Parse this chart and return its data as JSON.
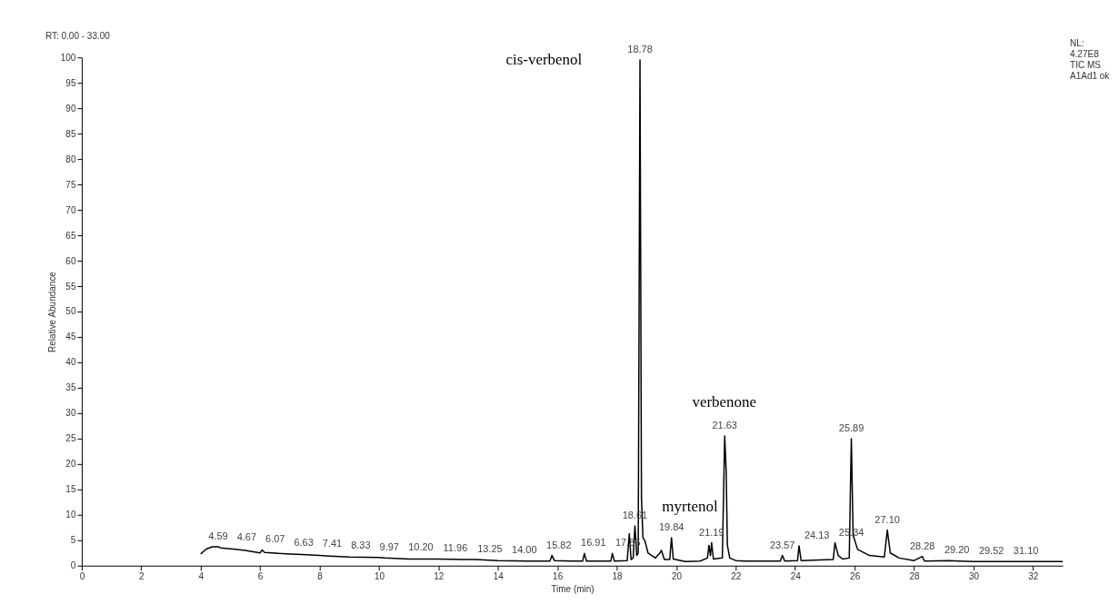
{
  "chart_data": {
    "type": "line",
    "xlabel": "Time (min)",
    "ylabel": "Relative Abundance",
    "xlim": [
      0,
      33
    ],
    "xticks": [
      0,
      2,
      4,
      6,
      8,
      10,
      12,
      14,
      16,
      18,
      20,
      22,
      24,
      26,
      28,
      30,
      32
    ],
    "ylim": [
      0,
      100
    ],
    "yticks": [
      0,
      5,
      10,
      15,
      20,
      25,
      30,
      35,
      40,
      45,
      50,
      55,
      60,
      65,
      70,
      75,
      80,
      85,
      90,
      95,
      100
    ],
    "grid": false,
    "marker": "none",
    "line_style": "solid",
    "series": [
      {
        "color": "#000000",
        "x": [
          4.0,
          4.2,
          4.4,
          4.59,
          4.67,
          5.0,
          5.5,
          6.0,
          6.07,
          6.15,
          6.63,
          7.0,
          7.41,
          8.0,
          8.33,
          9.0,
          9.97,
          10.2,
          11.0,
          11.96,
          13.0,
          13.25,
          14.0,
          15.0,
          15.75,
          15.82,
          15.9,
          16.5,
          16.85,
          16.91,
          16.98,
          17.8,
          17.85,
          17.92,
          18.35,
          18.42,
          18.48,
          18.55,
          18.61,
          18.67,
          18.72,
          18.78,
          18.83,
          18.88,
          18.95,
          19.05,
          19.3,
          19.45,
          19.5,
          19.6,
          19.78,
          19.84,
          19.9,
          20.3,
          20.8,
          21.05,
          21.1,
          21.15,
          21.19,
          21.25,
          21.55,
          21.63,
          21.68,
          21.72,
          21.8,
          22.0,
          22.3,
          23.5,
          23.57,
          23.65,
          24.08,
          24.13,
          24.2,
          25.28,
          25.34,
          25.45,
          25.6,
          25.82,
          25.85,
          25.89,
          25.95,
          26.1,
          26.5,
          27.0,
          27.1,
          27.2,
          27.5,
          28.0,
          28.28,
          28.35,
          29.2,
          29.52,
          30.0,
          31.0,
          31.1,
          33.0
        ],
        "values": [
          2.3,
          3.3,
          3.7,
          3.7,
          3.5,
          3.3,
          3.0,
          2.5,
          3.1,
          2.6,
          2.4,
          2.3,
          2.2,
          2.0,
          1.9,
          1.7,
          1.6,
          1.5,
          1.3,
          1.3,
          1.2,
          1.2,
          1.0,
          0.9,
          0.9,
          2.0,
          1.0,
          0.9,
          0.9,
          2.4,
          0.9,
          0.9,
          2.4,
          0.9,
          1.0,
          6.3,
          1.2,
          1.5,
          7.8,
          2.0,
          2.5,
          99.5,
          13.2,
          5.5,
          4.8,
          2.5,
          1.5,
          2.5,
          3.0,
          1.2,
          1.2,
          5.5,
          1.3,
          0.8,
          0.9,
          1.5,
          4.0,
          2.0,
          4.5,
          1.3,
          1.5,
          25.5,
          18.4,
          4.0,
          1.5,
          1.0,
          0.9,
          0.9,
          2.0,
          0.9,
          1.0,
          3.9,
          1.0,
          1.2,
          4.5,
          2.0,
          1.3,
          1.5,
          12.0,
          25.0,
          6.0,
          3.2,
          2.0,
          1.7,
          7.0,
          2.5,
          1.5,
          1.0,
          1.8,
          0.9,
          1.0,
          0.9,
          0.8,
          0.8,
          0.8,
          0.8
        ]
      }
    ],
    "annotations": [
      "RT: 0.00 - 33.00",
      "NL:\n4.27E8\nTIC  MS\nA1Ad1 ok",
      "cis-verbenol",
      "verbenone",
      "myrtenol",
      {
        "text": "4.59",
        "x": 4.59,
        "y": 3.7
      },
      {
        "text": "4.67",
        "x": 4.67,
        "y": 3.5
      },
      {
        "text": "6.07",
        "x": 6.07,
        "y": 3.1
      },
      {
        "text": "6.63",
        "x": 6.63,
        "y": 2.4
      },
      {
        "text": "7.41",
        "x": 7.41,
        "y": 2.2
      },
      {
        "text": "8.33",
        "x": 8.33,
        "y": 1.9
      },
      {
        "text": "9.97",
        "x": 9.97,
        "y": 1.6
      },
      {
        "text": "10.20",
        "x": 10.2,
        "y": 1.5
      },
      {
        "text": "11.96",
        "x": 11.96,
        "y": 1.3
      },
      {
        "text": "13.25",
        "x": 13.25,
        "y": 1.2
      },
      {
        "text": "14.00",
        "x": 14.0,
        "y": 1.0
      },
      {
        "text": "15.82",
        "x": 15.82,
        "y": 2.0
      },
      {
        "text": "16.91",
        "x": 16.91,
        "y": 2.4
      },
      {
        "text": "17.85",
        "x": 17.85,
        "y": 2.4
      },
      {
        "text": "18.61",
        "x": 18.61,
        "y": 7.8
      },
      {
        "text": "18.78",
        "x": 18.78,
        "y": 99.5
      },
      {
        "text": "19.84",
        "x": 19.84,
        "y": 5.5
      },
      {
        "text": "21.19",
        "x": 21.19,
        "y": 4.5
      },
      {
        "text": "21.63",
        "x": 21.63,
        "y": 25.5
      },
      {
        "text": "23.57",
        "x": 23.57,
        "y": 2.0
      },
      {
        "text": "24.13",
        "x": 24.13,
        "y": 3.9
      },
      {
        "text": "25.34",
        "x": 25.34,
        "y": 4.5
      },
      {
        "text": "25.89",
        "x": 25.89,
        "y": 25.0
      },
      {
        "text": "27.10",
        "x": 27.1,
        "y": 7.0
      },
      {
        "text": "28.28",
        "x": 28.28,
        "y": 1.8
      },
      {
        "text": "29.20",
        "x": 29.2,
        "y": 1.0
      },
      {
        "text": "29.52",
        "x": 29.52,
        "y": 0.9
      },
      {
        "text": "31.10",
        "x": 31.1,
        "y": 0.8
      }
    ]
  }
}
